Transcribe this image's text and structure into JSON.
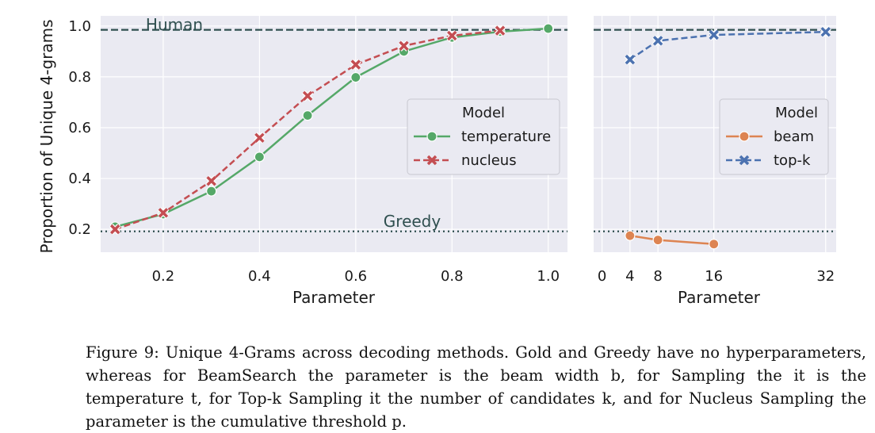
{
  "chart_data": [
    {
      "type": "line",
      "xlabel": "Parameter",
      "ylabel": "Proportion of Unique 4-grams",
      "xlim": [
        0.07,
        1.04
      ],
      "ylim": [
        0.11,
        1.04
      ],
      "xticks": [
        "0.2",
        "0.4",
        "0.6",
        "0.8",
        "1.0"
      ],
      "xtick_values": [
        0.2,
        0.4,
        0.6,
        0.8,
        1.0
      ],
      "yticks": [
        "0.2",
        "0.4",
        "0.6",
        "0.8",
        "1.0"
      ],
      "ytick_values": [
        0.2,
        0.4,
        0.6,
        0.8,
        1.0
      ],
      "reference_lines": [
        {
          "label": "Human",
          "y": 0.985,
          "style": "dashed"
        },
        {
          "label": "Greedy",
          "y": 0.192,
          "style": "dotted"
        }
      ],
      "legend": {
        "title": "Model",
        "position": "center-right"
      },
      "series": [
        {
          "name": "temperature",
          "color": "#55a868",
          "marker": "circle",
          "dash": false,
          "x": [
            0.1,
            0.2,
            0.3,
            0.4,
            0.5,
            0.6,
            0.7,
            0.8,
            0.9,
            1.0
          ],
          "y": [
            0.21,
            0.26,
            0.35,
            0.485,
            0.648,
            0.798,
            0.9,
            0.955,
            0.978,
            0.99
          ]
        },
        {
          "name": "nucleus",
          "color": "#c44e52",
          "marker": "x",
          "dash": true,
          "x": [
            0.1,
            0.2,
            0.3,
            0.4,
            0.5,
            0.6,
            0.7,
            0.8,
            0.9
          ],
          "y": [
            0.2,
            0.265,
            0.39,
            0.56,
            0.725,
            0.848,
            0.922,
            0.962,
            0.982
          ]
        }
      ]
    },
    {
      "type": "line",
      "xlabel": "Parameter",
      "ylabel": "",
      "xlim": [
        -1.2,
        33.5
      ],
      "ylim": [
        0.11,
        1.04
      ],
      "xticks": [
        "0",
        "4",
        "8",
        "16",
        "32"
      ],
      "xtick_values": [
        0,
        4,
        8,
        16,
        32
      ],
      "reference_lines": [
        {
          "label": "",
          "y": 0.985,
          "style": "dashed"
        },
        {
          "label": "",
          "y": 0.192,
          "style": "dotted"
        }
      ],
      "legend": {
        "title": "Model",
        "position": "center-right"
      },
      "series": [
        {
          "name": "beam",
          "color": "#dd8452",
          "marker": "circle",
          "dash": false,
          "x": [
            4,
            8,
            16
          ],
          "y": [
            0.175,
            0.158,
            0.142
          ]
        },
        {
          "name": "top-k",
          "color": "#4c72b0",
          "marker": "x",
          "dash": true,
          "x": [
            4,
            8,
            16,
            32
          ],
          "y": [
            0.868,
            0.942,
            0.965,
            0.977
          ]
        }
      ]
    }
  ],
  "caption": "Figure 9: Unique 4-Grams across decoding methods. Gold and Greedy have no hyperparameters, whereas for BeamSearch the parameter is the beam width b, for Sampling the it is the temperature t, for Top-k Sampling it the number of candidates k, and for Nucleus Sampling the parameter is the cumulative threshold p."
}
